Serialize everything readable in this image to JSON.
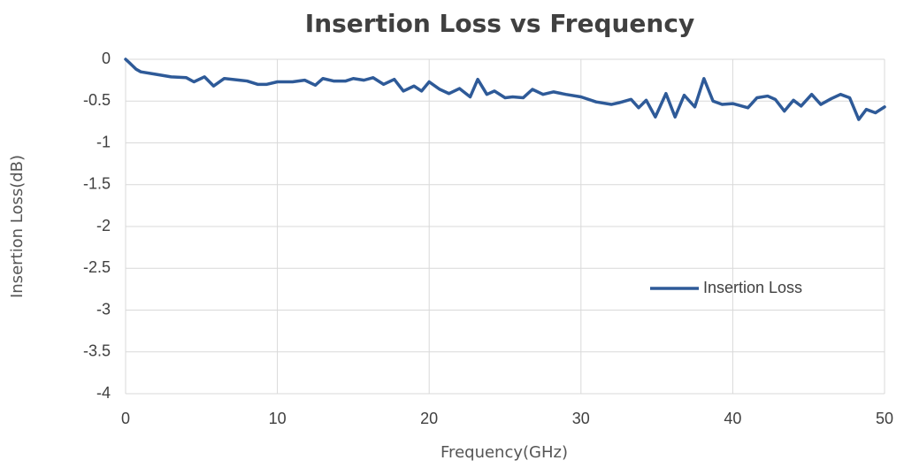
{
  "chart_data": {
    "type": "line",
    "title": "Insertion Loss vs Frequency",
    "x_label": "Frequency(GHz)",
    "y_label": "Insertion Loss(dB)",
    "xlim": [
      0,
      50
    ],
    "xticks": [
      0,
      10,
      20,
      30,
      40,
      50
    ],
    "ylim": [
      -4,
      0
    ],
    "yticks": [
      0,
      -0.5,
      -1,
      -1.5,
      -2,
      -2.5,
      -3,
      -3.5,
      -4
    ],
    "grid": true,
    "legend": "center-right",
    "x": [
      0,
      0.3,
      0.7,
      1,
      2,
      3,
      4,
      4.5,
      5.2,
      5.8,
      6.5,
      7.5,
      8,
      8.7,
      9.3,
      10,
      11,
      11.8,
      12.5,
      13,
      13.7,
      14.5,
      15,
      15.7,
      16.3,
      17,
      17.7,
      18.3,
      19,
      19.5,
      20,
      20.7,
      21.3,
      22,
      22.7,
      23.2,
      23.8,
      24.3,
      25,
      25.5,
      26.2,
      26.8,
      27.5,
      28.2,
      29,
      30,
      31,
      32,
      32.5,
      33.3,
      33.8,
      34.3,
      34.9,
      35.6,
      36.2,
      36.8,
      37.5,
      38.1,
      38.7,
      39.3,
      40,
      41,
      41.6,
      42.3,
      42.8,
      43.4,
      44,
      44.5,
      45.2,
      45.8,
      46.5,
      47.1,
      47.7,
      48.3,
      48.8,
      49.4,
      50
    ],
    "series": [
      {
        "name": "Insertion Loss",
        "color": "#2e5a98",
        "values": [
          0,
          -0.05,
          -0.12,
          -0.15,
          -0.18,
          -0.21,
          -0.22,
          -0.27,
          -0.21,
          -0.32,
          -0.23,
          -0.25,
          -0.26,
          -0.3,
          -0.3,
          -0.27,
          -0.27,
          -0.25,
          -0.31,
          -0.23,
          -0.26,
          -0.26,
          -0.23,
          -0.25,
          -0.22,
          -0.3,
          -0.24,
          -0.38,
          -0.32,
          -0.38,
          -0.27,
          -0.36,
          -0.41,
          -0.35,
          -0.45,
          -0.24,
          -0.42,
          -0.38,
          -0.46,
          -0.45,
          -0.46,
          -0.36,
          -0.42,
          -0.39,
          -0.42,
          -0.45,
          -0.51,
          -0.54,
          -0.52,
          -0.48,
          -0.58,
          -0.49,
          -0.69,
          -0.41,
          -0.69,
          -0.43,
          -0.57,
          -0.23,
          -0.5,
          -0.54,
          -0.53,
          -0.58,
          -0.46,
          -0.44,
          -0.48,
          -0.62,
          -0.49,
          -0.56,
          -0.42,
          -0.54,
          -0.47,
          -0.42,
          -0.46,
          -0.72,
          -0.6,
          -0.64,
          -0.57
        ]
      }
    ]
  }
}
